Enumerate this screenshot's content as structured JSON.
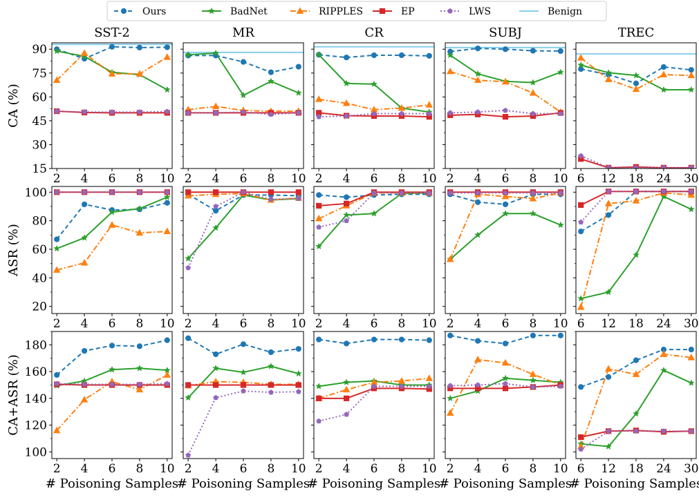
{
  "legend": [
    {
      "name": "Ours",
      "color": "#1f77b4",
      "dash": "6,4",
      "marker": "circle"
    },
    {
      "name": "BadNet",
      "color": "#2ca02c",
      "dash": "",
      "marker": "star"
    },
    {
      "name": "RIPPLES",
      "color": "#ff7f0e",
      "dash": "8,3,2,3",
      "marker": "triangle"
    },
    {
      "name": "EP",
      "color": "#d62728",
      "dash": "",
      "marker": "square"
    },
    {
      "name": "LWS",
      "color": "#9467bd",
      "dash": "2,3",
      "marker": "pentagon"
    },
    {
      "name": "Benign",
      "color": "#87ceeb",
      "dash": "",
      "marker": "none"
    }
  ],
  "chart_data": {
    "type": "line",
    "columns": [
      "SST-2",
      "MR",
      "CR",
      "SUBJ",
      "TREC"
    ],
    "x_label": "# Poisoning Samples",
    "row_ylabels": [
      "CA (%)",
      "ASR (%)",
      "CA+ASR (%)"
    ],
    "x_values": [
      [
        2,
        4,
        6,
        8,
        10
      ],
      [
        2,
        4,
        6,
        8,
        10
      ],
      [
        2,
        4,
        6,
        8,
        10
      ],
      [
        2,
        4,
        6,
        8,
        10
      ],
      [
        6,
        12,
        18,
        24,
        30
      ]
    ],
    "rows": [
      {
        "metric": "CA (%)",
        "ylim": [
          15,
          94
        ],
        "yticks": [
          15,
          30,
          45,
          60,
          75,
          90
        ],
        "benign": [
          93,
          88,
          91.5,
          91,
          87
        ],
        "series": {
          "Ours": [
            [
              90,
              84,
              91.5,
              91,
              91.2
            ],
            [
              86,
              86,
              82,
              75.5,
              79
            ],
            [
              86.5,
              84.8,
              86.2,
              86.2,
              85.8
            ],
            [
              88.5,
              90.5,
              90,
              89,
              88.8
            ],
            [
              77.5,
              74,
              68.5,
              78.8,
              77
            ]
          ],
          "BadNet": [
            [
              88.8,
              85.5,
              75.5,
              74,
              64.5
            ],
            [
              86.5,
              87.5,
              61,
              69.8,
              62.5
            ],
            [
              86.5,
              68.5,
              68,
              53,
              50.5
            ],
            [
              86.2,
              74.5,
              69.8,
              69,
              75.5
            ],
            [
              80,
              75.2,
              73.5,
              64.5,
              64.5
            ]
          ],
          "RIPPLES": [
            [
              70.5,
              87.5,
              74.5,
              74.5,
              85
            ],
            [
              52,
              54,
              51.5,
              51,
              51
            ],
            [
              58.5,
              56,
              52,
              53,
              55
            ],
            [
              76,
              70.5,
              69.5,
              62.5,
              50.5
            ],
            [
              84.5,
              71,
              64.8,
              74,
              73.5
            ]
          ],
          "EP": [
            [
              51,
              50.2,
              50,
              50,
              50
            ],
            [
              50,
              50,
              50,
              50,
              50
            ],
            [
              50,
              48.2,
              48,
              48,
              47.5
            ],
            [
              48.5,
              49,
              47.5,
              48,
              50
            ],
            [
              21,
              15.5,
              16,
              15.5,
              15.5
            ]
          ],
          "LWS": [
            [
              51,
              50.5,
              50.5,
              50.5,
              50.8
            ],
            [
              50,
              50,
              50.5,
              49,
              50
            ],
            [
              47.5,
              48,
              49.5,
              49.5,
              49.5
            ],
            [
              50,
              50.5,
              51.5,
              49.5,
              49.5
            ],
            [
              23,
              15.5,
              15.5,
              15.5,
              15.5
            ]
          ]
        }
      },
      {
        "metric": "ASR (%)",
        "ylim": [
          15,
          104
        ],
        "yticks": [
          20,
          40,
          60,
          80,
          100
        ],
        "series": {
          "Ours": [
            [
              67,
              91.5,
              87.5,
              88,
              92.5
            ],
            [
              98.5,
              87,
              98,
              98,
              97.5
            ],
            [
              98,
              96.5,
              98,
              98.5,
              98.5
            ],
            [
              98.5,
              93,
              91.5,
              98.5,
              98.5
            ],
            [
              72.5,
              84,
              100.5,
              100.5,
              100.5
            ]
          ],
          "BadNet": [
            [
              60.5,
              68,
              86,
              88.5,
              96.5
            ],
            [
              53.5,
              75,
              98,
              94.5,
              95.5
            ],
            [
              62,
              84,
              85,
              99,
              99.5
            ],
            [
              53,
              70,
              85,
              85,
              77
            ],
            [
              25.5,
              30,
              56,
              97,
              88
            ]
          ],
          "RIPPLES": [
            [
              45.5,
              50.5,
              77,
              71.5,
              72.5
            ],
            [
              97.5,
              98.5,
              99,
              94.5,
              96
            ],
            [
              81.5,
              90.5,
              99.5,
              99.5,
              99.5
            ],
            [
              53,
              98.5,
              97,
              95.5,
              99.5
            ],
            [
              19.5,
              92,
              94,
              99.5,
              98
            ]
          ],
          "EP": [
            [
              100,
              100,
              100,
              100,
              100
            ],
            [
              100,
              100,
              100,
              100,
              100
            ],
            [
              90.5,
              92,
              100,
              100,
              100
            ],
            [
              100,
              100,
              100,
              100,
              100
            ],
            [
              91,
              100.5,
              100.5,
              100.5,
              100.5
            ]
          ],
          "LWS": [
            [
              100,
              100,
              100,
              100,
              100
            ],
            [
              47,
              90,
              100,
              95,
              95.5
            ],
            [
              75.5,
              80,
              99.5,
              99.5,
              99.5
            ],
            [
              99.5,
              99.5,
              99.5,
              99.5,
              99.5
            ],
            [
              79,
              100.5,
              100.5,
              100.5,
              100.5
            ]
          ]
        }
      },
      {
        "metric": "CA+ASR (%)",
        "ylim": [
          95,
          190
        ],
        "yticks": [
          100,
          120,
          140,
          160,
          180
        ],
        "series": {
          "Ours": [
            [
              157.5,
              175.5,
              179.5,
              179,
              183.5
            ],
            [
              185,
              173,
              180.5,
              174.5,
              177
            ],
            [
              184,
              181,
              184,
              184,
              183.5
            ],
            [
              187,
              183,
              181,
              187,
              187
            ],
            [
              148.5,
              156,
              168.5,
              176.5,
              176.5
            ]
          ],
          "BadNet": [
            [
              149.5,
              153,
              161.5,
              162.5,
              161
            ],
            [
              140.5,
              162.5,
              159.5,
              164,
              158.5
            ],
            [
              149,
              152,
              153,
              150,
              150
            ],
            [
              140,
              145.5,
              155,
              153.5,
              152
            ],
            [
              106,
              104,
              128.5,
              161,
              151.5
            ]
          ],
          "RIPPLES": [
            [
              116,
              139,
              152.5,
              146.5,
              157.5
            ],
            [
              149.5,
              152.5,
              152,
              150.5,
              150.5
            ],
            [
              140,
              146.5,
              152,
              153,
              155
            ],
            [
              129,
              169,
              166.5,
              158,
              150
            ],
            [
              104,
              162,
              158,
              173,
              170.5
            ]
          ],
          "EP": [
            [
              150.5,
              150,
              150,
              150,
              150
            ],
            [
              150,
              150,
              150,
              150,
              150
            ],
            [
              140,
              140,
              147.5,
              147.5,
              147
            ],
            [
              147.5,
              147.5,
              147.5,
              148.5,
              150
            ],
            [
              111,
              115.5,
              116,
              115,
              115.5
            ]
          ],
          "LWS": [
            [
              151,
              150.5,
              150.5,
              150.5,
              151
            ],
            [
              97.5,
              140.5,
              145.5,
              144.5,
              145
            ],
            [
              123,
              128,
              149,
              149,
              149
            ],
            [
              149.5,
              150,
              151,
              148.5,
              149
            ],
            [
              102,
              115.5,
              115.5,
              115.5,
              115.5
            ]
          ]
        }
      }
    ]
  }
}
